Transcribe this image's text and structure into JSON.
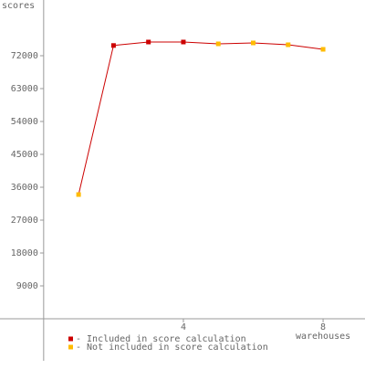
{
  "chart_data": {
    "type": "line",
    "y_label": "scores",
    "x_label": "warehouses",
    "x": [
      1,
      2,
      3,
      4,
      5,
      6,
      7,
      8
    ],
    "values": [
      34000,
      74800,
      75750,
      75750,
      75250,
      75500,
      75000,
      73750
    ],
    "line_color": "#cc0000",
    "point_colors": [
      "#ffbb00",
      "#cc0000",
      "#cc0000",
      "#cc0000",
      "#ffbb00",
      "#ffbb00",
      "#ffbb00",
      "#ffbb00"
    ],
    "legend": [
      {
        "label": "- Included in score calculation",
        "color": "#cc0000"
      },
      {
        "label": "- Not included in score calculation",
        "color": "#ffbb00"
      }
    ],
    "xlim": [
      -1.25,
      9.2
    ],
    "xticks": [
      4,
      8
    ],
    "ylim": [
      -12750,
      87250
    ],
    "yticks": [
      9000,
      18000,
      27000,
      36000,
      45000,
      54000,
      63000,
      72000
    ]
  }
}
